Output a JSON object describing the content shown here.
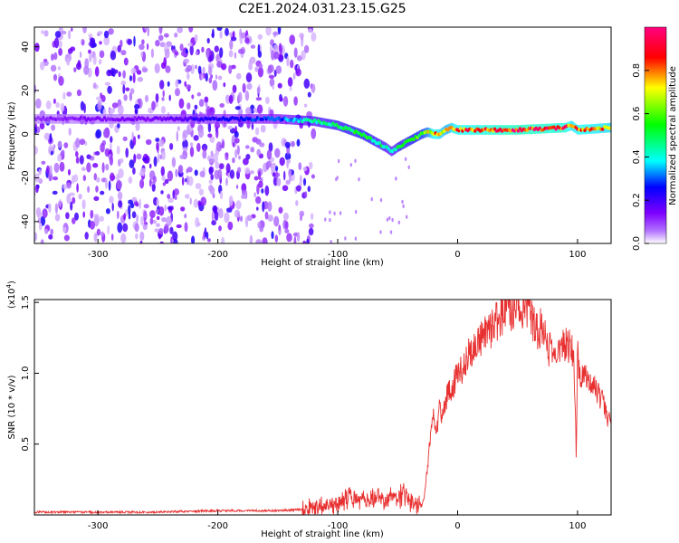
{
  "title": "C2E1.2024.031.23.15.G25",
  "chart_data": [
    {
      "type": "heatmap",
      "xlabel": "Height of straight line (km)",
      "ylabel": "Frequency (Hz)",
      "xlim": [
        -353,
        128
      ],
      "ylim": [
        -50,
        49
      ],
      "xticks": [
        -300,
        -200,
        -100,
        0,
        100
      ],
      "xtick_labels": [
        "-300",
        "-200",
        "-100",
        "0",
        "100"
      ],
      "yticks": [
        -40,
        -20,
        0,
        20,
        40
      ],
      "ytick_labels": [
        "-40",
        "-20",
        "0",
        "20",
        "40"
      ],
      "noise_region_x": [
        -353,
        -120
      ],
      "ridge": {
        "x": [
          -353,
          -250,
          -200,
          -150,
          -120,
          -100,
          -80,
          -70,
          -60,
          -55,
          -50,
          -40,
          -30,
          -25,
          -20,
          -15,
          -10,
          -5,
          0,
          50,
          90,
          95,
          100,
          128
        ],
        "y": [
          7,
          7,
          7,
          7,
          6,
          4,
          0,
          -3,
          -6,
          -8,
          -6,
          -3,
          0,
          1,
          0,
          0,
          2,
          3,
          2,
          2,
          3,
          4,
          2,
          3
        ],
        "amplitude": [
          0.12,
          0.15,
          0.25,
          0.3,
          0.45,
          0.5,
          0.55,
          0.5,
          0.45,
          0.4,
          0.5,
          0.55,
          0.6,
          0.7,
          0.85,
          0.8,
          0.75,
          0.8,
          0.85,
          0.95,
          0.9,
          0.8,
          0.85,
          0.8
        ]
      },
      "colorbar": {
        "label": "Normalized spectral amplitude",
        "range": [
          0,
          1
        ],
        "ticks": [
          0.0,
          0.2,
          0.4,
          0.6,
          0.8
        ],
        "tick_labels": [
          "0.0",
          "0.2",
          "0.4",
          "0.6",
          "0.8"
        ],
        "colors": [
          "#ffffff",
          "#7f00ff",
          "#0000ff",
          "#00ffff",
          "#00ff00",
          "#ffff00",
          "#ff0000",
          "#ff0080"
        ]
      }
    },
    {
      "type": "line",
      "xlabel": "Height of straight line (km)",
      "ylabel": "SNR (10 * v/v)",
      "multiplier_label": "(x10",
      "multiplier_exp": "4",
      "multiplier_close": ")",
      "xlim": [
        -353,
        128
      ],
      "ylim": [
        0,
        1.52
      ],
      "xticks": [
        -300,
        -200,
        -100,
        0,
        100
      ],
      "xtick_labels": [
        "-300",
        "-200",
        "-100",
        "0",
        "100"
      ],
      "yticks": [
        0.5,
        1.0,
        1.5
      ],
      "ytick_labels": [
        "0.5",
        "1.0",
        "1.5"
      ],
      "color": "#e83030",
      "series": [
        {
          "x": [
            -353,
            -300,
            -250,
            -200,
            -150,
            -130,
            -120,
            -110,
            -100,
            -95,
            -90,
            -85,
            -80,
            -75,
            -70,
            -65,
            -60,
            -55,
            -50,
            -45,
            -40,
            -35,
            -30,
            -28,
            -25,
            -22,
            -20,
            -18,
            -15,
            -12,
            -10,
            -8,
            -5,
            -2,
            0,
            5,
            10,
            15,
            20,
            25,
            30,
            35,
            40,
            45,
            50,
            55,
            60,
            62,
            65,
            70,
            72,
            75,
            80,
            85,
            90,
            95,
            97,
            99,
            100,
            101,
            102,
            105,
            110,
            115,
            118,
            120,
            122,
            124,
            126,
            128
          ],
          "y": [
            0.02,
            0.02,
            0.02,
            0.03,
            0.03,
            0.04,
            0.05,
            0.06,
            0.08,
            0.09,
            0.1,
            0.12,
            0.11,
            0.1,
            0.13,
            0.14,
            0.1,
            0.13,
            0.12,
            0.14,
            0.1,
            0.09,
            0.06,
            0.12,
            0.35,
            0.6,
            0.7,
            0.55,
            0.75,
            0.7,
            0.8,
            0.85,
            0.9,
            0.95,
            1.0,
            1.05,
            1.15,
            1.2,
            1.25,
            1.28,
            1.35,
            1.4,
            1.45,
            1.45,
            1.48,
            1.47,
            1.5,
            1.4,
            1.3,
            1.32,
            1.28,
            1.18,
            1.15,
            1.2,
            1.2,
            1.18,
            1.15,
            0.4,
            1.2,
            1.05,
            1.0,
            0.95,
            0.97,
            0.9,
            0.83,
            0.82,
            0.8,
            0.7,
            0.68,
            0.69
          ]
        }
      ]
    }
  ]
}
